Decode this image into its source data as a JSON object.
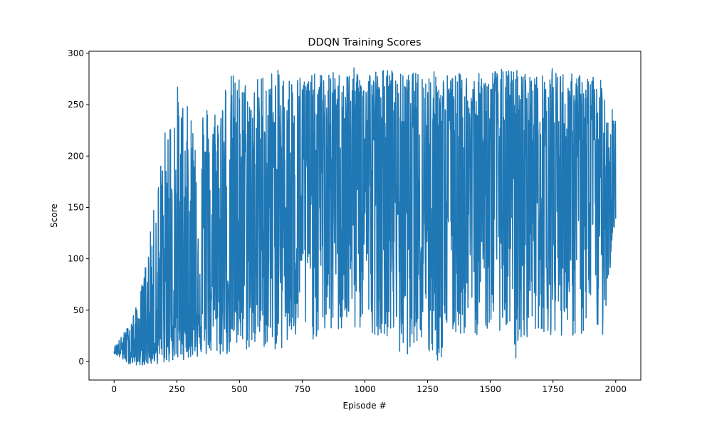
{
  "chart_data": {
    "type": "line",
    "title": "DDQN Training Scores",
    "xlabel": "Episode #",
    "ylabel": "Score",
    "xlim": [
      -100,
      2100
    ],
    "ylim": [
      -18,
      302
    ],
    "xticks": [
      0,
      250,
      500,
      750,
      1000,
      1250,
      1500,
      1750,
      2000
    ],
    "xtick_labels": [
      "0",
      "250",
      "500",
      "750",
      "1000",
      "1250",
      "1500",
      "1750",
      "2000"
    ],
    "yticks": [
      0,
      50,
      100,
      150,
      200,
      250,
      300
    ],
    "ytick_labels": [
      "0",
      "50",
      "100",
      "150",
      "200",
      "250",
      "300"
    ],
    "grid": false,
    "legend": "none",
    "series": [
      {
        "color": "#1f77b4",
        "x_start": 0,
        "x_end": 2000,
        "points": 2000,
        "envelope": [
          {
            "x": 0,
            "low": 8,
            "high": 14,
            "mean": 11
          },
          {
            "x": 50,
            "low": -2,
            "high": 32,
            "mean": 12
          },
          {
            "x": 100,
            "low": -4,
            "high": 60,
            "mean": 10
          },
          {
            "x": 150,
            "low": -3,
            "high": 134,
            "mean": 20
          },
          {
            "x": 200,
            "low": -2,
            "high": 224,
            "mean": 30
          },
          {
            "x": 250,
            "low": 0,
            "high": 272,
            "mean": 45
          },
          {
            "x": 300,
            "low": 3,
            "high": 245,
            "mean": 55
          },
          {
            "x": 350,
            "low": 4,
            "high": 256,
            "mean": 65
          },
          {
            "x": 400,
            "low": 5,
            "high": 250,
            "mean": 75
          },
          {
            "x": 450,
            "low": 5,
            "high": 282,
            "mean": 85
          },
          {
            "x": 500,
            "low": 8,
            "high": 280,
            "mean": 100
          },
          {
            "x": 550,
            "low": 10,
            "high": 272,
            "mean": 115
          },
          {
            "x": 600,
            "low": 12,
            "high": 286,
            "mean": 130
          },
          {
            "x": 650,
            "low": 10,
            "high": 284,
            "mean": 140
          },
          {
            "x": 700,
            "low": 8,
            "high": 280,
            "mean": 150
          },
          {
            "x": 750,
            "low": 25,
            "high": 282,
            "mean": 165
          },
          {
            "x": 800,
            "low": 20,
            "high": 280,
            "mean": 175
          },
          {
            "x": 850,
            "low": 25,
            "high": 282,
            "mean": 180
          },
          {
            "x": 900,
            "low": 25,
            "high": 282,
            "mean": 185
          },
          {
            "x": 950,
            "low": 25,
            "high": 286,
            "mean": 190
          },
          {
            "x": 1000,
            "low": 30,
            "high": 286,
            "mean": 195
          },
          {
            "x": 1050,
            "low": 25,
            "high": 285,
            "mean": 195
          },
          {
            "x": 1100,
            "low": 25,
            "high": 286,
            "mean": 190
          },
          {
            "x": 1150,
            "low": -3,
            "high": 280,
            "mean": 180
          },
          {
            "x": 1200,
            "low": 20,
            "high": 282,
            "mean": 180
          },
          {
            "x": 1250,
            "low": -3,
            "high": 285,
            "mean": 175
          },
          {
            "x": 1300,
            "low": -3,
            "high": 282,
            "mean": 175
          },
          {
            "x": 1350,
            "low": 20,
            "high": 280,
            "mean": 180
          },
          {
            "x": 1400,
            "low": 25,
            "high": 282,
            "mean": 180
          },
          {
            "x": 1450,
            "low": 25,
            "high": 280,
            "mean": 185
          },
          {
            "x": 1500,
            "low": 30,
            "high": 286,
            "mean": 185
          },
          {
            "x": 1550,
            "low": 30,
            "high": 285,
            "mean": 185
          },
          {
            "x": 1600,
            "low": -3,
            "high": 286,
            "mean": 180
          },
          {
            "x": 1650,
            "low": 25,
            "high": 282,
            "mean": 185
          },
          {
            "x": 1700,
            "low": 30,
            "high": 278,
            "mean": 185
          },
          {
            "x": 1750,
            "low": 25,
            "high": 286,
            "mean": 185
          },
          {
            "x": 1800,
            "low": 25,
            "high": 282,
            "mean": 180
          },
          {
            "x": 1850,
            "low": 20,
            "high": 280,
            "mean": 180
          },
          {
            "x": 1900,
            "low": 25,
            "high": 282,
            "mean": 180
          },
          {
            "x": 1950,
            "low": 25,
            "high": 272,
            "mean": 175
          },
          {
            "x": 2000,
            "low": 138,
            "high": 250,
            "mean": 160
          }
        ]
      }
    ]
  }
}
